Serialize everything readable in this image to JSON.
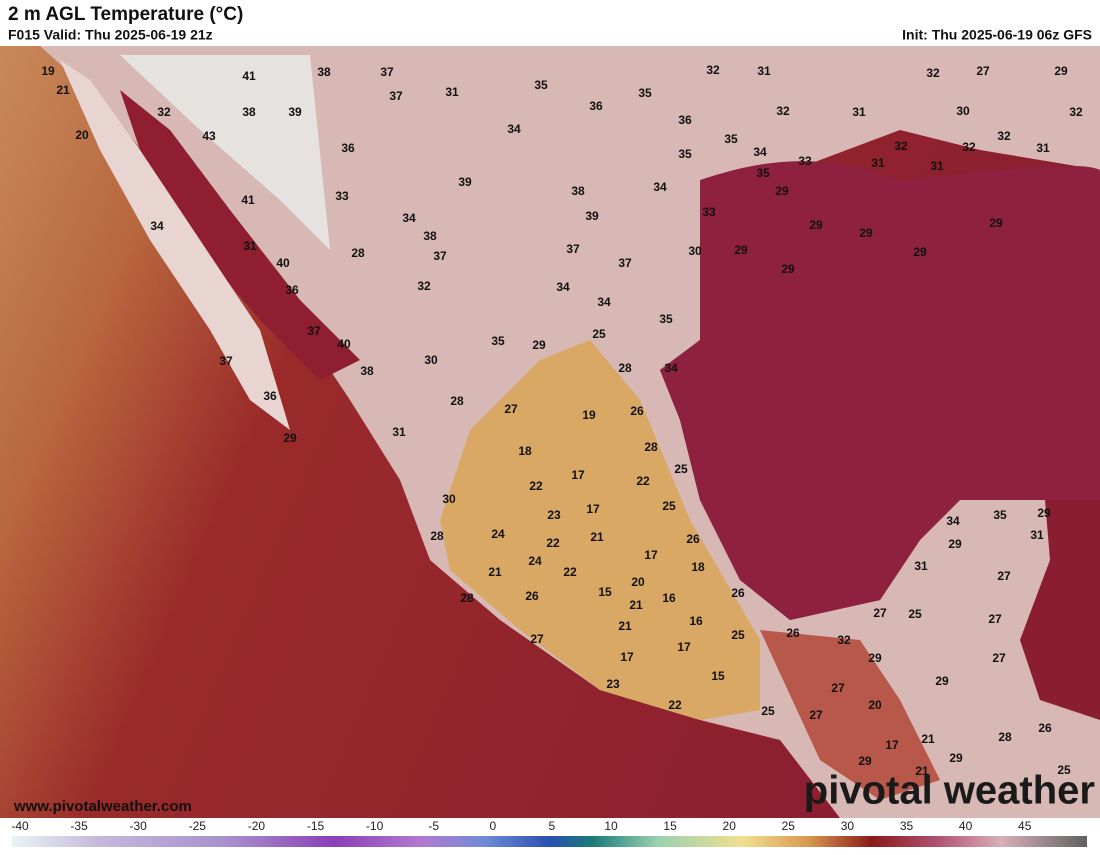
{
  "header": {
    "title": "2 m AGL Temperature (°C)",
    "valid": "F015 Valid: Thu 2025-06-19 21z",
    "init": "Init: Thu 2025-06-19 06z GFS"
  },
  "map": {
    "labels": [
      19,
      21,
      20,
      41,
      38,
      37,
      37,
      31,
      35,
      32,
      31,
      32,
      27,
      29,
      32,
      43,
      38,
      39,
      36,
      35,
      34,
      36,
      32,
      31,
      30,
      32,
      32,
      36,
      35,
      35,
      34,
      33,
      32,
      32,
      31,
      31,
      31,
      35,
      39,
      38,
      34,
      29,
      41,
      33,
      39,
      33,
      34,
      38,
      29,
      29,
      29,
      34,
      31,
      37,
      37,
      28,
      30,
      29,
      29,
      40,
      37,
      29,
      36,
      32,
      34,
      34,
      35,
      37,
      25,
      40,
      35,
      29,
      30,
      28,
      34,
      37,
      38,
      36,
      28,
      27,
      26,
      19,
      31,
      29,
      28,
      18,
      25,
      17,
      22,
      22,
      30,
      25,
      17,
      23,
      34,
      35,
      29,
      31,
      24,
      28,
      21,
      22,
      26,
      29,
      17,
      24,
      22,
      18,
      21,
      31,
      27,
      20,
      15,
      26,
      28,
      26,
      16,
      21,
      27,
      25,
      27,
      16,
      21,
      25,
      26,
      32,
      27,
      17,
      29,
      27,
      17,
      15,
      29,
      23,
      27,
      22,
      25,
      20,
      27,
      26,
      28,
      17,
      21,
      29,
      29,
      21,
      25
    ]
  },
  "colorbar": {
    "ticks": [
      -40,
      -35,
      -30,
      -25,
      -20,
      -15,
      -10,
      -5,
      0,
      5,
      10,
      15,
      20,
      25,
      30,
      35,
      40,
      45
    ]
  },
  "footer": {
    "website": "www.pivotalweather.com",
    "logo": "pivotal weather"
  }
}
